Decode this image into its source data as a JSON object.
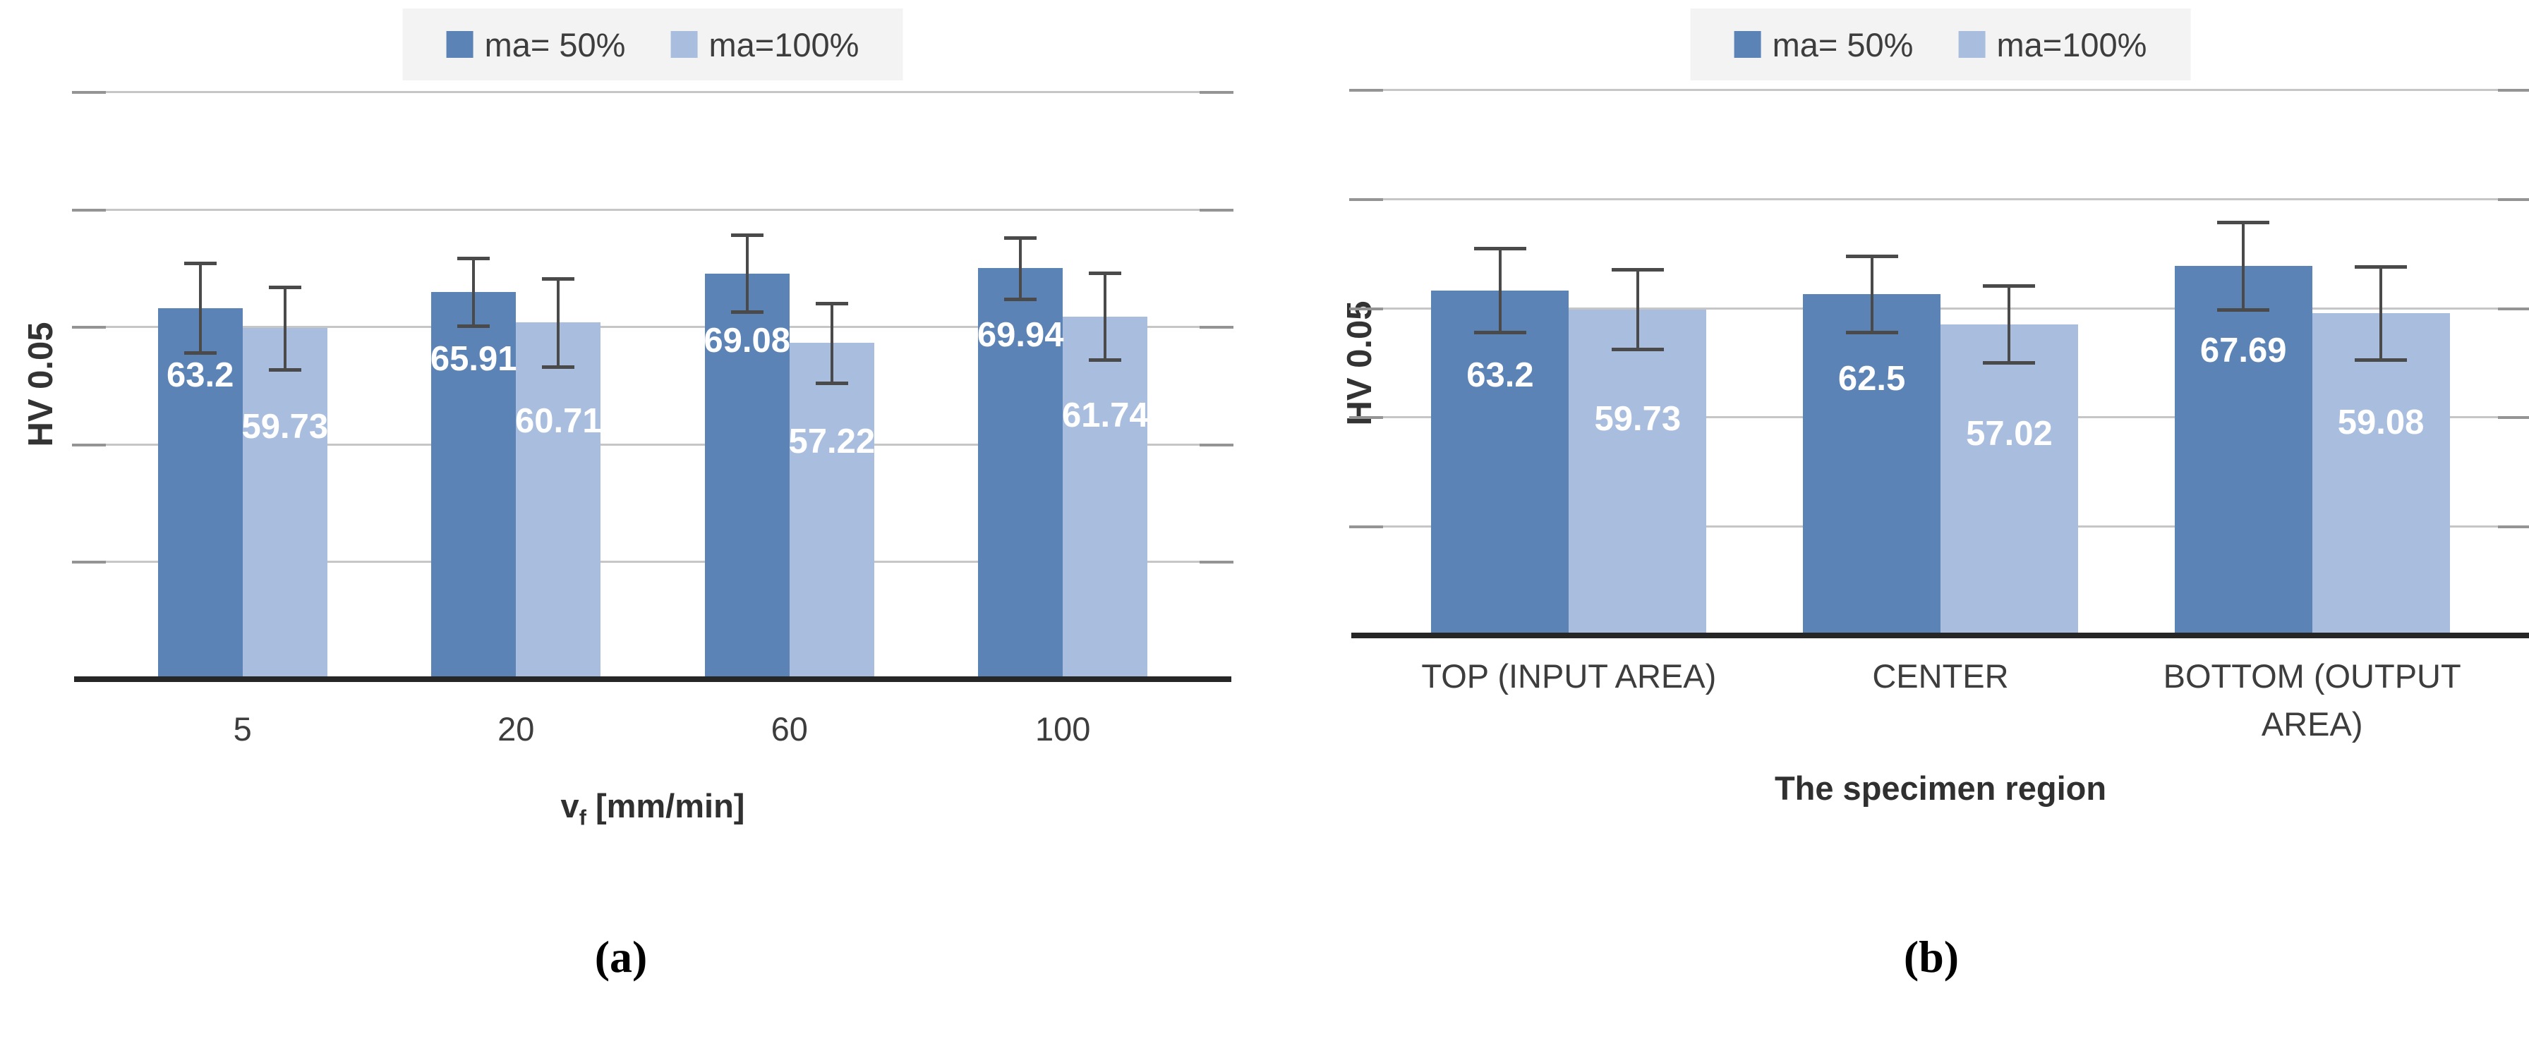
{
  "chart_data": [
    {
      "type": "bar",
      "panel": "a",
      "caption": "(a)",
      "ylabel": "HV 0.05",
      "xlabel_parts": {
        "prefix": "v",
        "sub": "f",
        "suffix": " [mm/min]"
      },
      "categories": [
        "5",
        "20",
        "60",
        "100"
      ],
      "series": [
        {
          "name": "ma= 50%",
          "color": "#5b83b6",
          "values": [
            63.2,
            65.91,
            69.08,
            69.94
          ],
          "errors": [
            7.6,
            5.8,
            6.5,
            5.2
          ]
        },
        {
          "name": "ma=100%",
          "color": "#a9bedf",
          "values": [
            59.73,
            60.71,
            57.22,
            61.74
          ],
          "errors": [
            7.0,
            7.5,
            6.8,
            7.4
          ]
        }
      ],
      "ylim": [
        0,
        100
      ],
      "grid_step": 20,
      "grid": true,
      "legend_position": "top"
    },
    {
      "type": "bar",
      "panel": "b",
      "caption": "(b)",
      "ylabel": "HV 0.05",
      "xlabel_parts": {
        "prefix": "The specimen region",
        "sub": "",
        "suffix": ""
      },
      "categories": [
        "TOP (INPUT AREA)",
        "CENTER",
        "BOTTOM (OUTPUT AREA)"
      ],
      "series": [
        {
          "name": "ma= 50%",
          "color": "#5b83b6",
          "values": [
            63.2,
            62.5,
            67.69
          ],
          "errors": [
            7.7,
            7.0,
            8.0
          ]
        },
        {
          "name": "ma=100%",
          "color": "#a9bedf",
          "values": [
            59.73,
            57.02,
            59.08
          ],
          "errors": [
            7.3,
            7.0,
            8.5
          ]
        }
      ],
      "ylim": [
        0,
        100
      ],
      "grid_step": 20,
      "grid": true,
      "legend_position": "top"
    }
  ],
  "colors": {
    "series_dark": "#5b83b6",
    "series_light": "#a9bedf",
    "gridline": "#c6c6c6",
    "axis_line": "#262626",
    "error_bar": "#4a4a4a",
    "legend_background": "#f3f3f3",
    "text": "#3d3d3d"
  }
}
